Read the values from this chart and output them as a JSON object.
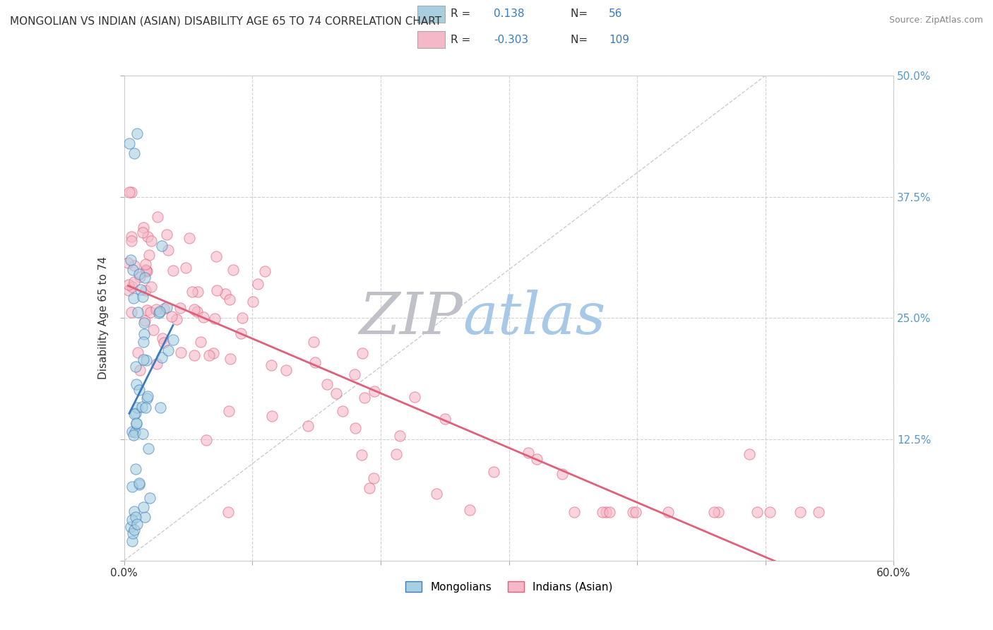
{
  "title": "MONGOLIAN VS INDIAN (ASIAN) DISABILITY AGE 65 TO 74 CORRELATION CHART",
  "source": "Source: ZipAtlas.com",
  "ylabel": "Disability Age 65 to 74",
  "xlim": [
    0.0,
    0.6
  ],
  "ylim": [
    0.0,
    0.5
  ],
  "mongolian_R": 0.138,
  "mongolian_N": 56,
  "indian_R": -0.303,
  "indian_N": 109,
  "mongolian_marker_color": "#a8cfe0",
  "indian_marker_color": "#f5b8c8",
  "trendline_mongolian_color": "#3a7bbf",
  "trendline_indian_color": "#e0607a",
  "diagonal_color": "#b0b8c8",
  "watermark_zip_color": "#c0c0c8",
  "watermark_atlas_color": "#a8c8e8",
  "background_color": "#ffffff",
  "right_tick_color": "#5599cc",
  "legend_R_color": "#3a7bbf",
  "legend_N_color": "#3a7bbf"
}
